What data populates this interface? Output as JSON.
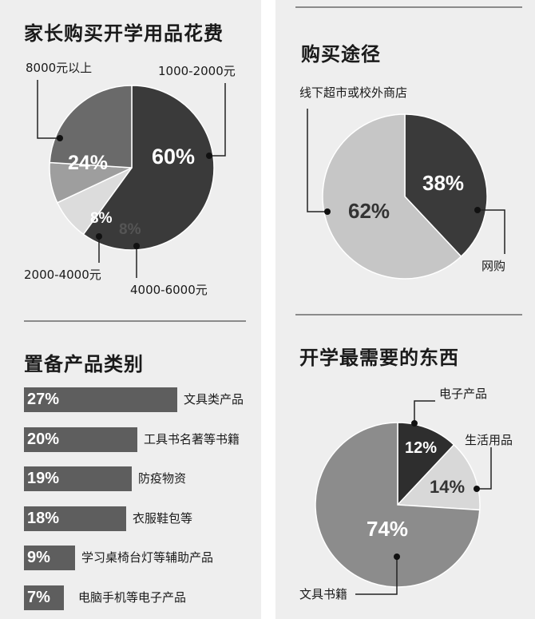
{
  "charts": {
    "cost": {
      "title": "家长购买开学用品花费",
      "chart_data": {
        "type": "pie",
        "slices": [
          {
            "label": "1000-2000元",
            "value": 60,
            "display": "60%",
            "color": "#3a3a3a"
          },
          {
            "label": "4000-6000元",
            "value": 8,
            "display": "8%",
            "color": "#dcdcdc"
          },
          {
            "label": "2000-4000元",
            "value": 8,
            "display": "8%",
            "color": "#9e9e9e"
          },
          {
            "label": "8000元以上",
            "value": 24,
            "display": "24%",
            "color": "#6a6a6a"
          }
        ]
      }
    },
    "channel": {
      "title": "购买途径",
      "chart_data": {
        "type": "pie",
        "slices": [
          {
            "label": "网购",
            "value": 38,
            "display": "38%",
            "color": "#3a3a3a"
          },
          {
            "label": "线下超市或校外商店",
            "value": 62,
            "display": "62%",
            "color": "#c6c6c6"
          }
        ]
      }
    },
    "category": {
      "title": "置备产品类别",
      "chart_data": {
        "type": "bar",
        "orientation": "horizontal",
        "categories": [
          "文具类产品",
          "工具书名著等书籍",
          "防疫物资",
          "衣服鞋包等",
          "学习桌椅台灯等辅助产品",
          "电脑手机等电子产品"
        ],
        "values": [
          27,
          20,
          19,
          18,
          9,
          7
        ],
        "display": [
          "27%",
          "20%",
          "19%",
          "18%",
          "9%",
          "7%"
        ],
        "color": "#5e5e5e"
      }
    },
    "needs": {
      "title": "开学最需要的东西",
      "chart_data": {
        "type": "pie",
        "slices": [
          {
            "label": "电子产品",
            "value": 12,
            "display": "12%",
            "color": "#2e2e2e"
          },
          {
            "label": "生活用品",
            "value": 14,
            "display": "14%",
            "color": "#d8d8d8"
          },
          {
            "label": "文具书籍",
            "value": 74,
            "display": "74%",
            "color": "#8c8c8c"
          }
        ]
      }
    }
  }
}
